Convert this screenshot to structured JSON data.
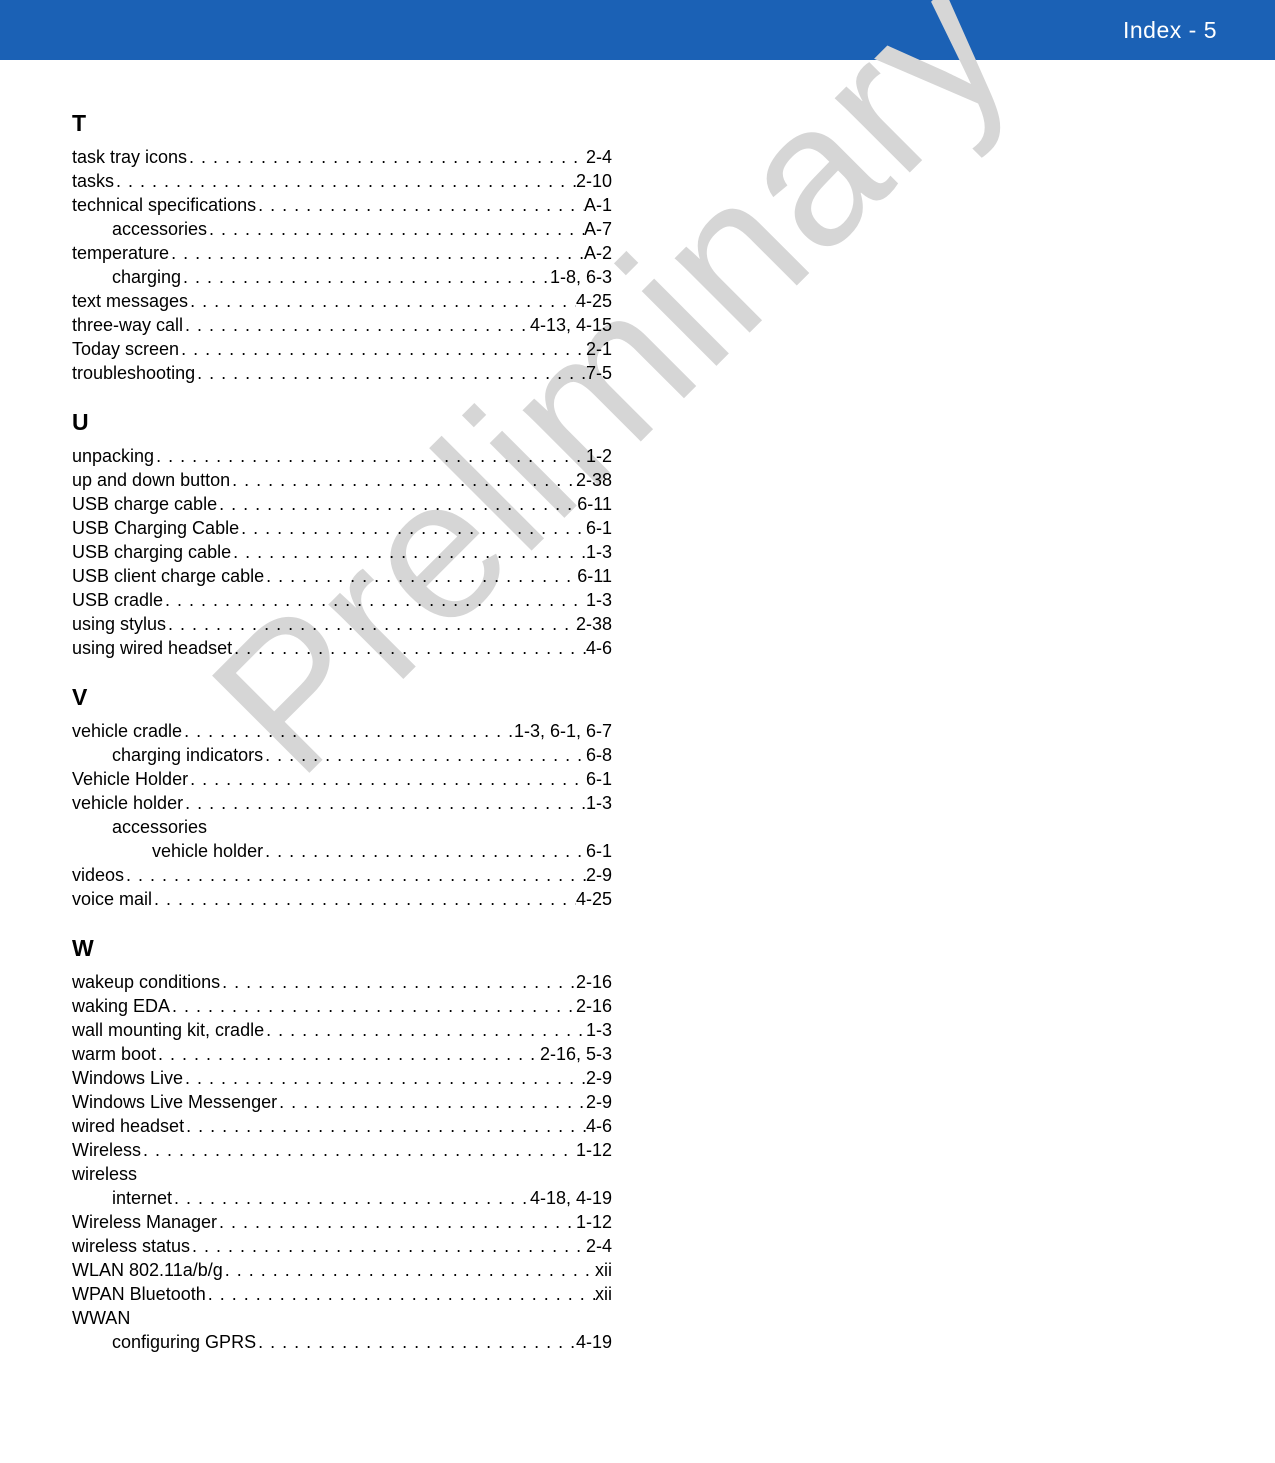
{
  "header": {
    "title": "Index - 5"
  },
  "watermark": "Preliminary",
  "sections": [
    {
      "letter": "T",
      "entries": [
        {
          "term": "task tray icons",
          "page": "2-4",
          "indent": 0
        },
        {
          "term": "tasks",
          "page": "2-10",
          "indent": 0
        },
        {
          "term": "technical specifications",
          "page": "A-1",
          "indent": 0
        },
        {
          "term": "accessories",
          "page": "A-7",
          "indent": 1
        },
        {
          "term": "temperature",
          "page": "A-2",
          "indent": 0
        },
        {
          "term": "charging",
          "page": "1-8, 6-3",
          "indent": 1
        },
        {
          "term": "text messages",
          "page": "4-25",
          "indent": 0
        },
        {
          "term": "three-way call",
          "page": "4-13, 4-15",
          "indent": 0
        },
        {
          "term": "Today screen",
          "page": "2-1",
          "indent": 0
        },
        {
          "term": "troubleshooting",
          "page": "7-5",
          "indent": 0
        }
      ]
    },
    {
      "letter": "U",
      "entries": [
        {
          "term": "unpacking",
          "page": "1-2",
          "indent": 0
        },
        {
          "term": "up and down button",
          "page": "2-38",
          "indent": 0
        },
        {
          "term": "USB charge cable",
          "page": "6-11",
          "indent": 0
        },
        {
          "term": "USB Charging Cable",
          "page": "6-1",
          "indent": 0
        },
        {
          "term": "USB charging cable",
          "page": "1-3",
          "indent": 0
        },
        {
          "term": "USB client charge cable",
          "page": "6-11",
          "indent": 0
        },
        {
          "term": "USB cradle",
          "page": "1-3",
          "indent": 0
        },
        {
          "term": "using stylus",
          "page": "2-38",
          "indent": 0
        },
        {
          "term": "using wired headset",
          "page": "4-6",
          "indent": 0
        }
      ]
    },
    {
      "letter": "V",
      "entries": [
        {
          "term": "vehicle cradle",
          "page": "1-3, 6-1, 6-7",
          "indent": 0
        },
        {
          "term": "charging indicators",
          "page": "6-8",
          "indent": 1
        },
        {
          "term": "Vehicle Holder",
          "page": "6-1",
          "indent": 0
        },
        {
          "term": "vehicle holder",
          "page": "1-3",
          "indent": 0
        },
        {
          "term": "accessories",
          "page": "",
          "indent": 1,
          "noPage": true
        },
        {
          "term": "vehicle holder",
          "page": "6-1",
          "indent": 2
        },
        {
          "term": "videos",
          "page": "2-9",
          "indent": 0
        },
        {
          "term": "voice mail",
          "page": "4-25",
          "indent": 0
        }
      ]
    },
    {
      "letter": "W",
      "entries": [
        {
          "term": "wakeup conditions",
          "page": "2-16",
          "indent": 0
        },
        {
          "term": "waking EDA",
          "page": "2-16",
          "indent": 0
        },
        {
          "term": "wall mounting kit, cradle",
          "page": "1-3",
          "indent": 0
        },
        {
          "term": "warm boot",
          "page": "2-16, 5-3",
          "indent": 0
        },
        {
          "term": "Windows Live",
          "page": "2-9",
          "indent": 0
        },
        {
          "term": "Windows Live Messenger",
          "page": "2-9",
          "indent": 0
        },
        {
          "term": "wired headset",
          "page": "4-6",
          "indent": 0
        },
        {
          "term": "Wireless",
          "page": "1-12",
          "indent": 0
        },
        {
          "term": "wireless",
          "page": "",
          "indent": 0,
          "noPage": true
        },
        {
          "term": "internet",
          "page": "4-18, 4-19",
          "indent": 1
        },
        {
          "term": "Wireless Manager",
          "page": "1-12",
          "indent": 0
        },
        {
          "term": "wireless status",
          "page": "2-4",
          "indent": 0
        },
        {
          "term": "WLAN 802.11a/b/g",
          "page": "xii",
          "indent": 0
        },
        {
          "term": "WPAN Bluetooth",
          "page": "xii",
          "indent": 0
        },
        {
          "term": "WWAN",
          "page": "",
          "indent": 0,
          "noPage": true
        },
        {
          "term": "configuring GPRS",
          "page": "4-19",
          "indent": 1
        }
      ]
    }
  ],
  "colors": {
    "headerBg": "#1b61b5",
    "headerText": "#ffffff",
    "bodyText": "#000000",
    "watermark": "#d6d6d6",
    "background": "#ffffff"
  }
}
